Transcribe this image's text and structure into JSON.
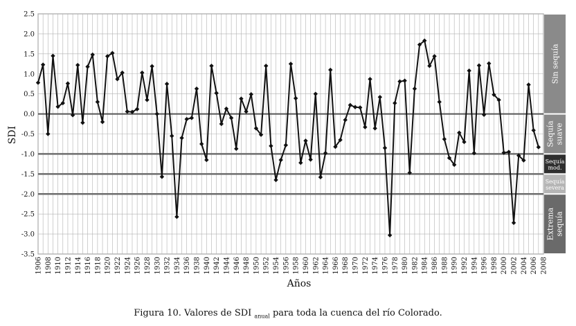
{
  "caption": {
    "prefix": "Figura 10. Valores de SDI",
    "subscript": "anual",
    "suffix": " para toda la cuenca del río Colorado."
  },
  "colors": {
    "line": "#111111",
    "grid": "#b0b0b0",
    "zero_line": "#555555",
    "threshold_line": "#6e6e6e",
    "band_sin_sequia": "#8a8a8a",
    "band_suave": "#8a8a8a",
    "band_mod": "#2f2f2f",
    "band_severa": "#b5b5b5",
    "band_extrema": "#6a6a6a"
  },
  "bands": [
    {
      "label": "Sin sequía",
      "from": 0,
      "to": 2.5,
      "color": "#8a8a8a",
      "rotated": true
    },
    {
      "label": "Sequía suave",
      "from": -1,
      "to": 0,
      "color": "#8a8a8a",
      "rotated": true
    },
    {
      "label": "Sequía mod.",
      "from": -1.5,
      "to": -1,
      "color": "#2f2f2f",
      "rotated": false
    },
    {
      "label": "Sequía severa",
      "from": -2,
      "to": -1.5,
      "color": "#b5b5b5",
      "rotated": false
    },
    {
      "label": "Extrema sequía",
      "from": -3.5,
      "to": -2,
      "color": "#6a6a6a",
      "rotated": true
    }
  ],
  "chart_data": {
    "type": "line",
    "title": "",
    "xlabel": "Años",
    "ylabel": "SDI",
    "xlim": [
      1906,
      2008
    ],
    "ylim": [
      -3.5,
      2.5
    ],
    "x_ticks": [
      1906,
      1908,
      1910,
      1912,
      1914,
      1916,
      1918,
      1920,
      1922,
      1924,
      1926,
      1928,
      1930,
      1932,
      1934,
      1936,
      1938,
      1940,
      1942,
      1944,
      1946,
      1948,
      1950,
      1952,
      1954,
      1956,
      1958,
      1960,
      1962,
      1964,
      1966,
      1968,
      1970,
      1972,
      1974,
      1976,
      1978,
      1980,
      1982,
      1984,
      1986,
      1988,
      1990,
      1992,
      1994,
      1996,
      1998,
      2000,
      2002,
      2004,
      2006,
      2008
    ],
    "y_ticks": [
      2.5,
      2.0,
      1.5,
      1.0,
      0.5,
      0.0,
      -0.5,
      -1.0,
      -1.5,
      -2.0,
      -2.5,
      -3.0,
      -3.5
    ],
    "y_tick_labels": [
      "2.5",
      "2.0",
      "1.5",
      "1.0",
      "0.5",
      "0.0",
      "-0.5",
      "-1.0",
      "-1.5",
      "-2.0",
      "-2.5",
      "-3.0",
      "-3.5"
    ],
    "threshold_lines": [
      0,
      -1,
      -1.5,
      -2
    ],
    "grid": true,
    "series": [
      {
        "x": [
          1906,
          1907,
          1908,
          1909,
          1910,
          1911,
          1912,
          1913,
          1914,
          1915,
          1916,
          1917,
          1918,
          1919,
          1920,
          1921,
          1922,
          1923,
          1924,
          1925,
          1926,
          1927,
          1928,
          1929,
          1930,
          1931,
          1932,
          1933,
          1934,
          1935,
          1936,
          1937,
          1938,
          1939,
          1940,
          1941,
          1942,
          1943,
          1944,
          1945,
          1946,
          1947,
          1948,
          1949,
          1950,
          1951,
          1952,
          1953,
          1954,
          1955,
          1956,
          1957,
          1958,
          1959,
          1960,
          1961,
          1962,
          1963,
          1964,
          1965,
          1966,
          1967,
          1968,
          1969,
          1970,
          1971,
          1972,
          1973,
          1974,
          1975,
          1976,
          1977,
          1978,
          1979,
          1980,
          1981,
          1982,
          1983,
          1984,
          1985,
          1986,
          1987,
          1988,
          1989,
          1990,
          1991,
          1992,
          1993,
          1994,
          1995,
          1996,
          1997,
          1998,
          1999,
          2000,
          2001,
          2002,
          2003,
          2004,
          2005,
          2006,
          2007
        ],
        "values": [
          0.78,
          1.23,
          -0.5,
          1.45,
          0.18,
          0.27,
          0.76,
          -0.03,
          1.22,
          -0.22,
          1.18,
          1.48,
          0.3,
          -0.2,
          1.44,
          1.52,
          0.87,
          1.03,
          0.06,
          0.05,
          0.12,
          1.03,
          0.35,
          1.19,
          0.0,
          -1.57,
          0.75,
          -0.55,
          -2.57,
          -0.6,
          -0.13,
          -0.1,
          0.63,
          -0.75,
          -1.15,
          1.2,
          0.52,
          -0.25,
          0.13,
          -0.1,
          -0.87,
          0.38,
          0.06,
          0.49,
          -0.36,
          -0.52,
          1.2,
          -0.8,
          -1.65,
          -1.15,
          -0.78,
          1.25,
          0.39,
          -1.22,
          -0.67,
          -1.14,
          0.5,
          -1.58,
          -0.98,
          1.1,
          -0.82,
          -0.65,
          -0.15,
          0.22,
          0.17,
          0.16,
          -0.33,
          0.87,
          -0.36,
          0.42,
          -0.85,
          -3.03,
          0.27,
          0.81,
          0.83,
          -1.47,
          0.63,
          1.73,
          1.83,
          1.2,
          1.44,
          0.3,
          -0.63,
          -1.1,
          -1.27,
          -0.47,
          -0.7,
          1.08,
          -0.98,
          1.21,
          -0.02,
          1.26,
          0.48,
          0.35,
          -0.97,
          -0.95,
          -2.72,
          -1.04,
          -1.16,
          0.73,
          -0.41,
          -0.83
        ]
      }
    ]
  }
}
